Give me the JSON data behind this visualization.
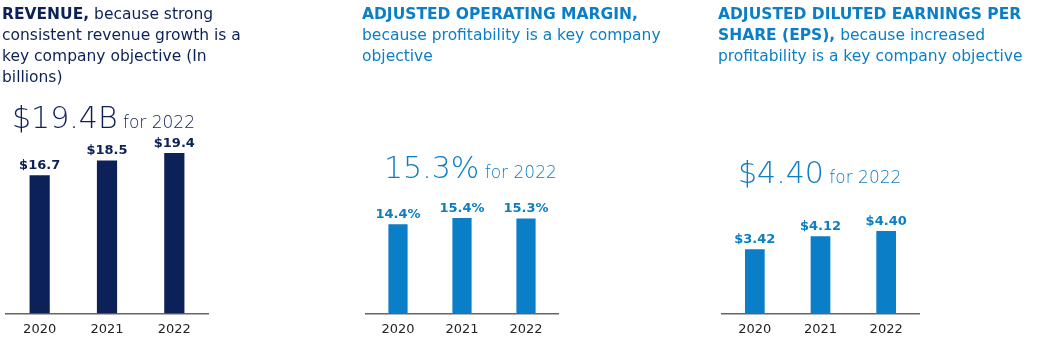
{
  "chart_data": [
    {
      "type": "bar",
      "title": "REVENUE, because strong consistent revenue growth is a key company objective (In billions)",
      "subtitle": "$19.4B for 2022",
      "categories": [
        "2020",
        "2021",
        "2022"
      ],
      "values": [
        16.7,
        18.5,
        19.4
      ],
      "value_labels": [
        "$16.7",
        "$18.5",
        "$19.4"
      ],
      "color": "#0c2157"
    },
    {
      "type": "bar",
      "title": "ADJUSTED OPERATING MARGIN, because profitability is a key company objective",
      "subtitle": "15.3% for 2022",
      "categories": [
        "2020",
        "2021",
        "2022"
      ],
      "values": [
        14.4,
        15.4,
        15.3
      ],
      "value_labels": [
        "14.4%",
        "15.4%",
        "15.3%"
      ],
      "color": "#0a7ec6"
    },
    {
      "type": "bar",
      "title": "ADJUSTED DILUTED EARNINGS PER SHARE (EPS), because increased profitability is a key company objective",
      "subtitle": "$4.40 for 2022",
      "categories": [
        "2020",
        "2021",
        "2022"
      ],
      "values": [
        3.42,
        4.12,
        4.4
      ],
      "value_labels": [
        "$3.42",
        "$4.12",
        "$4.40"
      ],
      "color": "#0a7ec6"
    }
  ]
}
